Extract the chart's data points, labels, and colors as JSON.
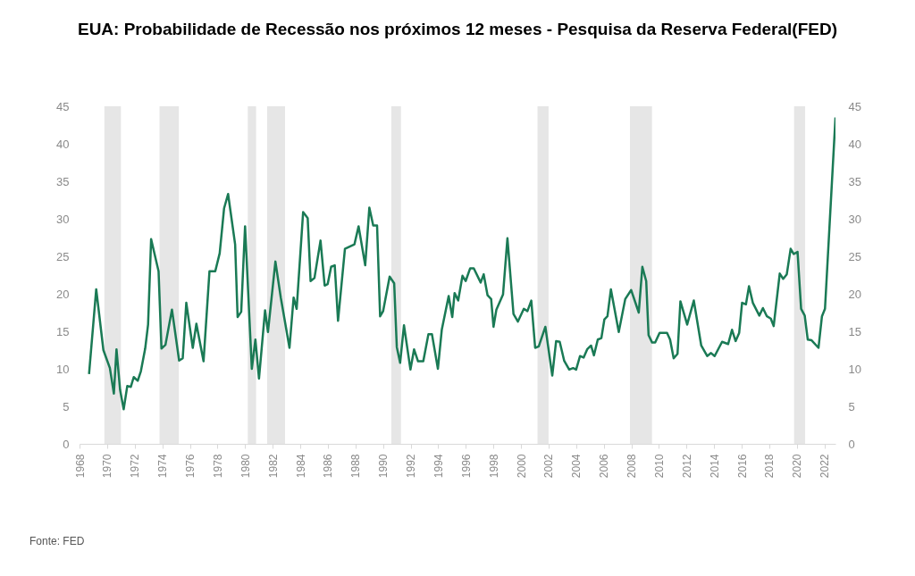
{
  "chart_data": {
    "type": "line",
    "title": "EUA: Probabilidade de Recessão nos próximos 12 meses - Pesquisa da Reserva Federal(FED)",
    "annotations": [
      "Fonte: FED"
    ],
    "xlim": [
      1968,
      2022.8
    ],
    "xticks": [
      1968,
      1970,
      1972,
      1974,
      1976,
      1978,
      1980,
      1982,
      1984,
      1986,
      1988,
      1990,
      1992,
      1994,
      1996,
      1998,
      2000,
      2002,
      2004,
      2006,
      2008,
      2010,
      2012,
      2014,
      2016,
      2018,
      2020,
      2022
    ],
    "ylim": [
      0,
      45
    ],
    "yticks": [
      0,
      5,
      10,
      15,
      20,
      25,
      30,
      35,
      40,
      45
    ],
    "y2lim": [
      0,
      45
    ],
    "y2ticks": [
      0,
      5,
      10,
      15,
      20,
      25,
      30,
      35,
      40,
      45
    ],
    "grid": false,
    "bands": [
      {
        "axis": "x",
        "from": 1969.8,
        "to": 1971.0,
        "color": "#e6e6e6"
      },
      {
        "axis": "x",
        "from": 1973.8,
        "to": 1975.2,
        "color": "#e6e6e6"
      },
      {
        "axis": "x",
        "from": 1980.2,
        "to": 1980.8,
        "color": "#e6e6e6"
      },
      {
        "axis": "x",
        "from": 1981.6,
        "to": 1982.9,
        "color": "#e6e6e6"
      },
      {
        "axis": "x",
        "from": 1990.6,
        "to": 1991.3,
        "color": "#e6e6e6"
      },
      {
        "axis": "x",
        "from": 2001.2,
        "to": 2002.0,
        "color": "#e6e6e6"
      },
      {
        "axis": "x",
        "from": 2007.9,
        "to": 2009.5,
        "color": "#e6e6e6"
      },
      {
        "axis": "x",
        "from": 2019.8,
        "to": 2020.6,
        "color": "#e6e6e6"
      }
    ],
    "series": [
      {
        "color": "#1a7a55",
        "x": [
          1968.69,
          1969.21,
          1969.73,
          1970.2,
          1970.49,
          1970.68,
          1970.94,
          1971.2,
          1971.46,
          1971.72,
          1971.93,
          1972.22,
          1972.45,
          1972.76,
          1972.97,
          1973.19,
          1973.73,
          1973.94,
          1974.23,
          1974.7,
          1975.22,
          1975.48,
          1975.74,
          1976.21,
          1976.47,
          1976.99,
          1977.42,
          1977.84,
          1978.16,
          1978.48,
          1978.77,
          1979.28,
          1979.46,
          1979.72,
          1980.0,
          1980.49,
          1980.75,
          1981.01,
          1981.45,
          1981.66,
          1982.2,
          1982.59,
          1983.22,
          1983.52,
          1983.74,
          1984.21,
          1984.54,
          1984.75,
          1985.03,
          1985.47,
          1985.77,
          1985.99,
          1986.24,
          1986.5,
          1986.74,
          1987.24,
          1987.93,
          1988.23,
          1988.71,
          1989.01,
          1989.29,
          1989.57,
          1989.79,
          1990.01,
          1990.48,
          1990.81,
          1991.0,
          1991.24,
          1991.52,
          1991.99,
          1992.25,
          1992.54,
          1992.92,
          1993.29,
          1993.55,
          1993.98,
          1994.26,
          1994.76,
          1995.02,
          1995.19,
          1995.45,
          1995.76,
          1995.99,
          1996.32,
          1996.58,
          1997.08,
          1997.3,
          1997.58,
          1997.84,
          1998.01,
          1998.22,
          1998.7,
          1999.02,
          1999.46,
          1999.78,
          2000.21,
          2000.47,
          2000.75,
          2001.03,
          2001.29,
          2001.77,
          2002.27,
          2002.55,
          2002.81,
          2003.13,
          2003.5,
          2003.78,
          2004.0,
          2004.28,
          2004.54,
          2004.8,
          2005.08,
          2005.29,
          2005.57,
          2005.83,
          2006.05,
          2006.27,
          2006.52,
          2007.09,
          2007.56,
          2007.99,
          2008.54,
          2008.8,
          2009.08,
          2009.25,
          2009.51,
          2009.73,
          2010.05,
          2010.59,
          2010.81,
          2011.07,
          2011.35,
          2011.56,
          2012.05,
          2012.53,
          2013.07,
          2013.5,
          2013.78,
          2014.04,
          2014.58,
          2015.02,
          2015.3,
          2015.56,
          2015.82,
          2016.03,
          2016.31,
          2016.53,
          2016.81,
          2017.28,
          2017.54,
          2017.83,
          2018.11,
          2018.32,
          2018.76,
          2019.01,
          2019.27,
          2019.55,
          2019.77,
          2020.05,
          2020.31,
          2020.57,
          2020.79,
          2021.07,
          2021.57,
          2021.82,
          2022.04,
          2022.8
        ],
        "values": [
          9.3,
          20.6,
          12.5,
          10.1,
          6.7,
          12.6,
          7.2,
          4.6,
          7.7,
          7.6,
          8.9,
          8.4,
          9.7,
          12.7,
          15.9,
          27.3,
          23.0,
          12.7,
          13.2,
          17.9,
          11.1,
          11.4,
          18.8,
          12.8,
          16.0,
          11.0,
          23.0,
          23.0,
          25.4,
          31.4,
          33.3,
          26.6,
          16.9,
          17.6,
          29.0,
          10.0,
          13.9,
          8.7,
          17.8,
          14.9,
          24.3,
          19.5,
          12.8,
          19.5,
          18.0,
          30.9,
          30.1,
          21.7,
          22.1,
          27.1,
          21.1,
          21.3,
          23.6,
          23.8,
          16.4,
          26.0,
          26.6,
          29.0,
          23.8,
          31.5,
          29.1,
          29.1,
          17.0,
          17.7,
          22.3,
          21.4,
          12.9,
          10.8,
          15.8,
          9.9,
          12.6,
          11.0,
          11.0,
          14.6,
          14.6,
          10.0,
          15.2,
          19.7,
          16.9,
          20.1,
          19.1,
          22.4,
          21.7,
          23.4,
          23.4,
          21.5,
          22.6,
          19.8,
          19.3,
          15.6,
          17.9,
          19.9,
          27.4,
          17.3,
          16.3,
          18.0,
          17.7,
          19.1,
          12.8,
          13.0,
          15.6,
          9.1,
          13.7,
          13.6,
          11.1,
          9.9,
          10.1,
          9.9,
          11.7,
          11.5,
          12.6,
          13.1,
          11.8,
          13.9,
          14.1,
          16.6,
          17.0,
          20.6,
          14.9,
          19.3,
          20.5,
          17.5,
          23.6,
          21.7,
          14.5,
          13.5,
          13.5,
          14.8,
          14.8,
          13.9,
          11.4,
          12.0,
          19.0,
          15.9,
          19.1,
          13.1,
          11.7,
          12.1,
          11.7,
          13.6,
          13.3,
          15.2,
          13.7,
          14.8,
          18.8,
          18.6,
          21.0,
          18.8,
          17.1,
          18.1,
          17.0,
          16.7,
          15.7,
          22.7,
          22.0,
          22.6,
          26.0,
          25.3,
          25.6,
          18.0,
          17.1,
          13.9,
          13.8,
          12.8,
          17.0,
          18.0,
          43.5
        ]
      }
    ]
  }
}
